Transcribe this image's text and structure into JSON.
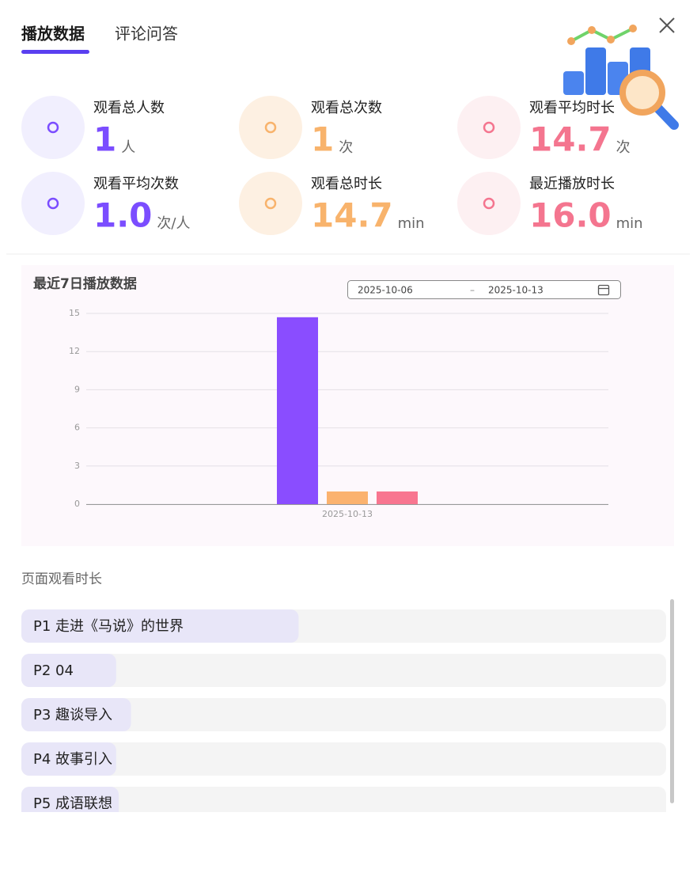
{
  "tabs": [
    "播放数据",
    "评论问答"
  ],
  "stats": [
    {
      "label": "观看总人数",
      "value": "1",
      "unit": "人",
      "color": "#7b4dff",
      "bg": "#f1effe"
    },
    {
      "label": "观看总次数",
      "value": "1",
      "unit": "次",
      "color": "#f8b36c",
      "bg": "#fdf0e2"
    },
    {
      "label": "观看平均时长",
      "value": "14.7",
      "unit": "次",
      "color": "#f4758f",
      "bg": "#fdf0f2"
    },
    {
      "label": "观看平均次数",
      "value": "1.0",
      "unit": "次/人",
      "color": "#7b4dff",
      "bg": "#f1effe"
    },
    {
      "label": "观看总时长",
      "value": "14.7",
      "unit": "min",
      "color": "#f8b36c",
      "bg": "#fdf0e2"
    },
    {
      "label": "最近播放时长",
      "value": "16.0",
      "unit": "min",
      "color": "#f4758f",
      "bg": "#fdf0f2"
    }
  ],
  "chart_data": {
    "type": "bar",
    "title": "最近7日播放数据",
    "date_range": {
      "start": "2025-10-06",
      "separator": "–",
      "end": "2025-10-13"
    },
    "categories": [
      "2025-10-13"
    ],
    "series": [
      {
        "color": "#8a4dff",
        "values": [
          14.7
        ]
      },
      {
        "color": "#fbb26e",
        "values": [
          1
        ]
      },
      {
        "color": "#f87690",
        "values": [
          1
        ]
      }
    ],
    "ylim": [
      0,
      15
    ],
    "yticks": [
      0,
      3,
      6,
      9,
      12,
      15
    ],
    "grid": true
  },
  "page_durations": {
    "title": "页面观看时长",
    "items": [
      {
        "label": "P1 走进《马说》的世界",
        "progress": 0.43
      },
      {
        "label": "P2 04",
        "progress": 0.147
      },
      {
        "label": "P3 趣谈导入",
        "progress": 0.17
      },
      {
        "label": "P4 故事引入",
        "progress": 0.147
      },
      {
        "label": "P5 成语联想",
        "progress": 0.151
      }
    ]
  }
}
